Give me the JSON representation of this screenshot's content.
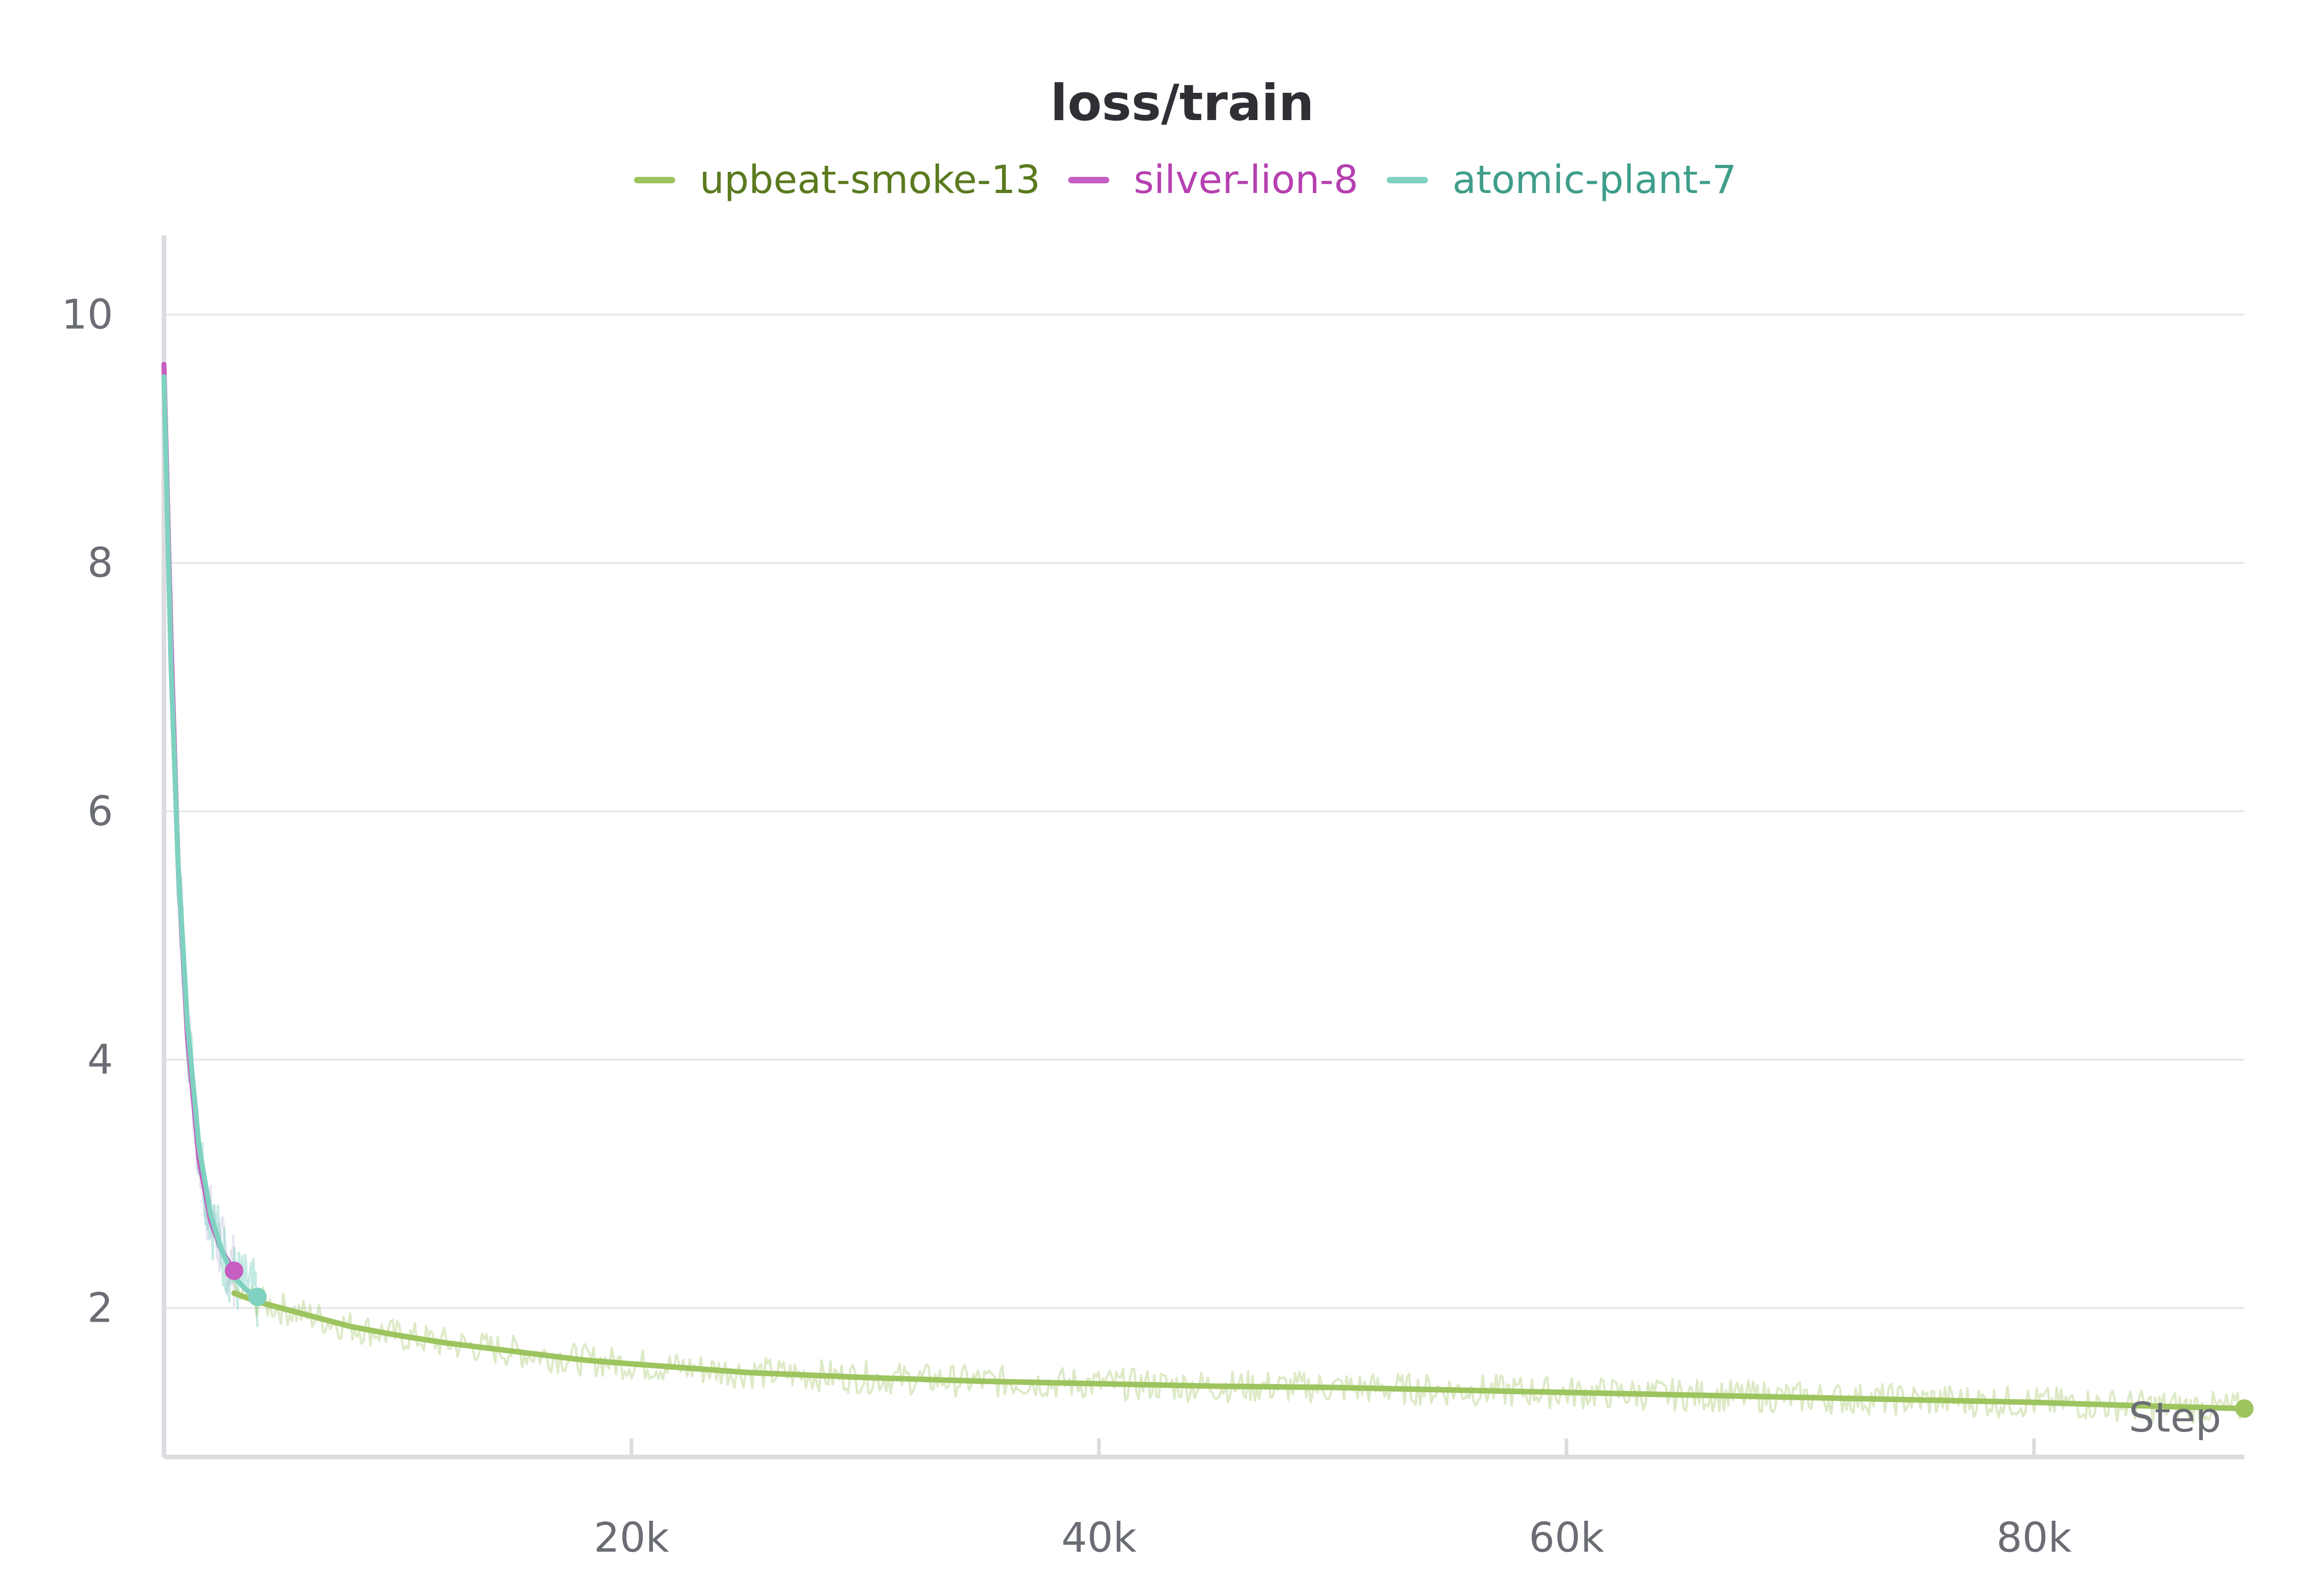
{
  "chart_data": {
    "type": "line",
    "title": "loss/train",
    "xlabel": "Step",
    "ylabel": "",
    "xlim": [
      0,
      89000
    ],
    "ylim": [
      0.8,
      10.6
    ],
    "x_ticks": [
      20000,
      40000,
      60000,
      80000
    ],
    "x_tick_labels": [
      "20k",
      "40k",
      "60k",
      "80k"
    ],
    "y_ticks": [
      2,
      4,
      6,
      8,
      10
    ],
    "y_tick_labels": [
      "2",
      "4",
      "6",
      "8",
      "10"
    ],
    "grid": true,
    "legend_position": "top-center",
    "series": [
      {
        "name": "upbeat-smoke-13",
        "color": "#9dc45f",
        "label_color": "#5a7a1e",
        "x": [
          3000,
          4000,
          5000,
          6000,
          8000,
          10000,
          12000,
          15000,
          18000,
          20000,
          25000,
          30000,
          35000,
          40000,
          45000,
          50000,
          55000,
          60000,
          65000,
          70000,
          75000,
          80000,
          85000,
          89000
        ],
        "y": [
          2.12,
          2.05,
          2.0,
          1.95,
          1.85,
          1.78,
          1.72,
          1.65,
          1.58,
          1.55,
          1.48,
          1.44,
          1.41,
          1.39,
          1.37,
          1.36,
          1.34,
          1.32,
          1.3,
          1.28,
          1.26,
          1.24,
          1.21,
          1.19
        ]
      },
      {
        "name": "silver-lion-8",
        "color": "#c65dc0",
        "label_color": "#b540b0",
        "x": [
          0,
          300,
          600,
          1000,
          1500,
          2000,
          2500,
          3000
        ],
        "y": [
          9.6,
          7.4,
          5.6,
          4.2,
          3.2,
          2.7,
          2.45,
          2.3
        ]
      },
      {
        "name": "atomic-plant-7",
        "color": "#7fd1c0",
        "label_color": "#3f9e8a",
        "x": [
          0,
          300,
          600,
          1000,
          1500,
          2000,
          2500,
          3000,
          3500,
          4000
        ],
        "y": [
          9.5,
          7.2,
          5.6,
          4.3,
          3.3,
          2.75,
          2.45,
          2.25,
          2.15,
          2.09
        ]
      }
    ]
  }
}
